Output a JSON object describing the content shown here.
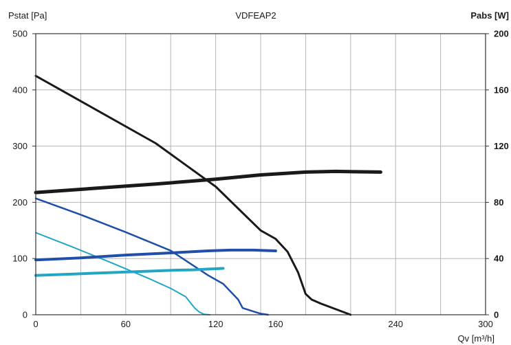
{
  "chart_data": {
    "type": "line",
    "title": "VDFEAP2",
    "ylabel": "Pstat [Pa]",
    "y2label": "Pabs [W]",
    "xlabel": "Qv [m³/h]",
    "xlim": [
      0,
      300
    ],
    "ylim": [
      0,
      500
    ],
    "y2lim": [
      0,
      200
    ],
    "xticks": [
      0,
      60,
      120,
      160,
      240,
      300
    ],
    "xgrid": [
      0,
      30,
      60,
      90,
      120,
      150,
      180,
      210,
      240,
      270,
      300
    ],
    "yticks": [
      0,
      100,
      200,
      300,
      400,
      500
    ],
    "y2ticks": [
      0,
      40,
      80,
      120,
      160,
      200
    ],
    "grid": true,
    "series": [
      {
        "axis": "left",
        "color": "#1a1a1a",
        "width": 3,
        "points": [
          [
            0,
            425
          ],
          [
            40,
            365
          ],
          [
            80,
            305
          ],
          [
            120,
            228
          ],
          [
            150,
            150
          ],
          [
            160,
            135
          ],
          [
            168,
            112
          ],
          [
            175,
            75
          ],
          [
            180,
            37
          ],
          [
            184,
            27
          ],
          [
            190,
            20
          ],
          [
            205,
            5
          ],
          [
            210,
            0
          ]
        ]
      },
      {
        "axis": "left",
        "color": "#1f4fa8",
        "width": 2.5,
        "points": [
          [
            0,
            207
          ],
          [
            30,
            178
          ],
          [
            60,
            147
          ],
          [
            90,
            114
          ],
          [
            115,
            70
          ],
          [
            125,
            55
          ],
          [
            135,
            27
          ],
          [
            138,
            12
          ],
          [
            145,
            6
          ],
          [
            150,
            2
          ],
          [
            155,
            0
          ]
        ]
      },
      {
        "axis": "left",
        "color": "#23a6c4",
        "width": 2,
        "points": [
          [
            0,
            146
          ],
          [
            25,
            120
          ],
          [
            50,
            93
          ],
          [
            75,
            65
          ],
          [
            90,
            47
          ],
          [
            100,
            32
          ],
          [
            103,
            22
          ],
          [
            106,
            12
          ],
          [
            109,
            5
          ],
          [
            112,
            1
          ],
          [
            116,
            0
          ]
        ]
      },
      {
        "axis": "right",
        "color": "#1a1a1a",
        "width": 5,
        "points": [
          [
            0,
            87
          ],
          [
            40,
            90
          ],
          [
            80,
            93
          ],
          [
            120,
            96.5
          ],
          [
            150,
            99.5
          ],
          [
            180,
            101.5
          ],
          [
            200,
            102
          ],
          [
            230,
            101.5
          ]
        ]
      },
      {
        "axis": "right",
        "color": "#1f4fa8",
        "width": 4,
        "points": [
          [
            0,
            39
          ],
          [
            30,
            40.5
          ],
          [
            60,
            42.5
          ],
          [
            90,
            44
          ],
          [
            115,
            45.5
          ],
          [
            130,
            46
          ],
          [
            145,
            46
          ],
          [
            160,
            45.5
          ]
        ]
      },
      {
        "axis": "right",
        "color": "#23a6c4",
        "width": 4,
        "points": [
          [
            0,
            28
          ],
          [
            25,
            29
          ],
          [
            50,
            30
          ],
          [
            75,
            31
          ],
          [
            95,
            31.8
          ],
          [
            105,
            32
          ],
          [
            115,
            32.5
          ],
          [
            125,
            33
          ]
        ]
      }
    ]
  }
}
